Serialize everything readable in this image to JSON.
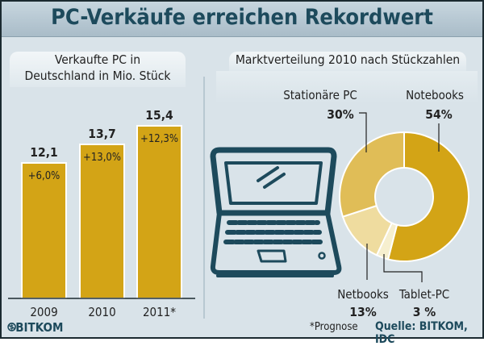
{
  "title": "PC-Verkäufe erreichen Rekordwert",
  "footnote": "*Prognose",
  "source": "Quelle: BITKOM, IDC",
  "logo": "BITKOM",
  "colors": {
    "bar": "#d3a416",
    "title": "#1d4a5c",
    "notebooks": "#d3a416",
    "stationaere": "#e0bd57",
    "netbooks": "#efdc9f",
    "tablet": "#f6efcf"
  },
  "chart_data": [
    {
      "type": "bar",
      "title": "Verkaufte PC in Deutschland in Mio. Stück",
      "title_lines": [
        "Verkaufte PC in",
        "Deutschland in Mio. Stück"
      ],
      "categories": [
        "2009",
        "2010",
        "2011*"
      ],
      "values": [
        12.1,
        13.7,
        15.4
      ],
      "value_labels": [
        "12,1",
        "13,7",
        "15,4"
      ],
      "growth_labels": [
        "+6,0%",
        "+13,0%",
        "+12,3%"
      ]
    },
    {
      "type": "pie",
      "donut": true,
      "title": "Marktverteilung 2010 nach Stückzahlen",
      "slices": [
        {
          "name": "Notebooks",
          "value": 54,
          "label": "54%"
        },
        {
          "name": "Tablet-PC",
          "value": 3,
          "label": "3 %"
        },
        {
          "name": "Netbooks",
          "value": 13,
          "label": "13%"
        },
        {
          "name": "Stationäre PC",
          "value": 30,
          "label": "30%"
        }
      ]
    }
  ]
}
